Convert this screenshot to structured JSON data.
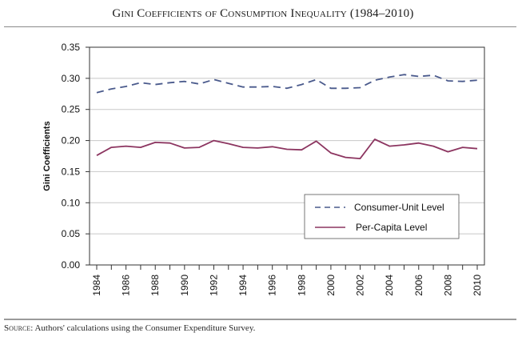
{
  "figure": {
    "title": "Gini Coefficients of Consumption Inequality (1984–2010)",
    "source_label": "Source:",
    "source_text": " Authors' calculations using the Consumer Expenditure Survey."
  },
  "chart_data": {
    "type": "line",
    "title": "Gini Coefficients of Consumption Inequality (1984–2010)",
    "xlabel": "",
    "ylabel": "Gini Coefficients",
    "ylim": [
      0.0,
      0.35
    ],
    "xlim": [
      1984,
      2010
    ],
    "yticks": [
      "0.00",
      "0.05",
      "0.10",
      "0.15",
      "0.20",
      "0.25",
      "0.30",
      "0.35"
    ],
    "ytick_values": [
      0.0,
      0.05,
      0.1,
      0.15,
      0.2,
      0.25,
      0.3,
      0.35
    ],
    "xtick_labels": [
      "1984",
      "1986",
      "1988",
      "1990",
      "1992",
      "1994",
      "1996",
      "1998",
      "2000",
      "2002",
      "2004",
      "2006",
      "2008",
      "2010"
    ],
    "grid": "horizontal",
    "legend_position": "lower-right",
    "x": [
      1984,
      1985,
      1986,
      1987,
      1988,
      1989,
      1990,
      1991,
      1992,
      1993,
      1994,
      1995,
      1996,
      1997,
      1998,
      1999,
      2000,
      2001,
      2002,
      2003,
      2004,
      2005,
      2006,
      2007,
      2008,
      2009,
      2010
    ],
    "series": [
      {
        "name": "Consumer-Unit Level",
        "style": "dashed",
        "color": "#4a5a8c",
        "values": [
          0.277,
          0.283,
          0.287,
          0.293,
          0.29,
          0.293,
          0.295,
          0.291,
          0.298,
          0.292,
          0.286,
          0.286,
          0.287,
          0.284,
          0.29,
          0.298,
          0.284,
          0.284,
          0.285,
          0.297,
          0.302,
          0.306,
          0.303,
          0.305,
          0.296,
          0.295,
          0.297
        ]
      },
      {
        "name": "Per-Capita Level",
        "style": "solid",
        "color": "#8c3560",
        "values": [
          0.176,
          0.189,
          0.191,
          0.189,
          0.197,
          0.196,
          0.188,
          0.189,
          0.2,
          0.195,
          0.189,
          0.188,
          0.19,
          0.186,
          0.185,
          0.199,
          0.18,
          0.173,
          0.171,
          0.202,
          0.191,
          0.193,
          0.196,
          0.191,
          0.182,
          0.189,
          0.187
        ]
      }
    ]
  }
}
